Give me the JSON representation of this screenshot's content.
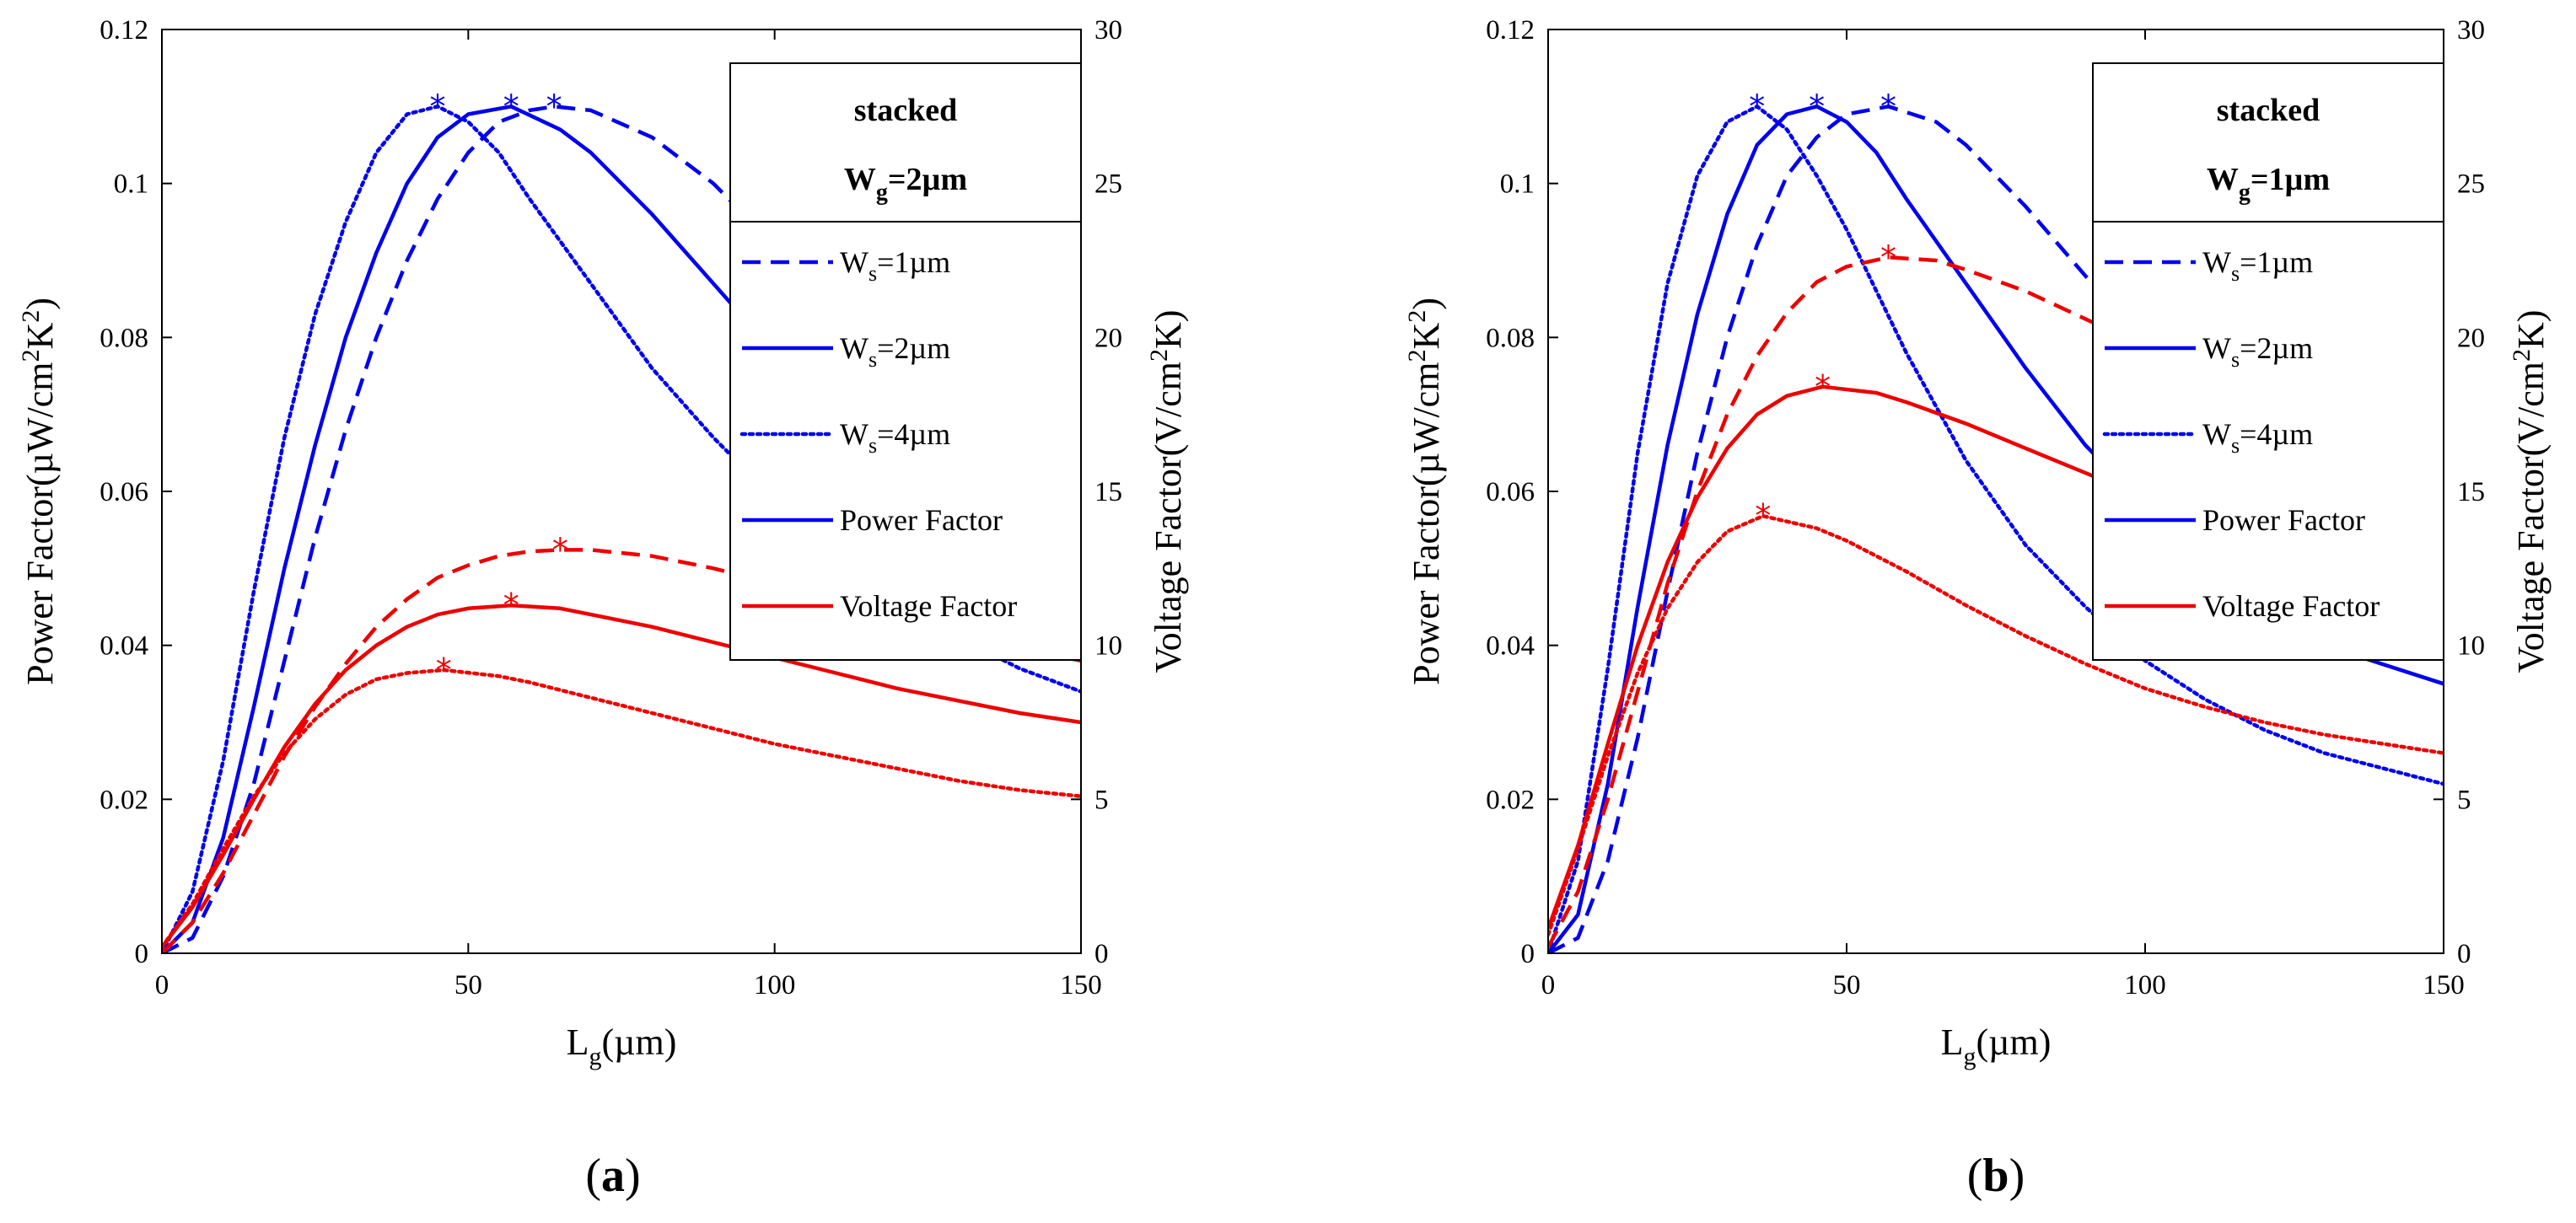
{
  "chart_data": [
    {
      "type": "line",
      "panel_label": "a",
      "xlabel": "L",
      "xlabel_sub": "g",
      "xlabel_unit": "(µm)",
      "ylabel_left": "Power Factor(µW/cm",
      "ylabel_left_sup": "2",
      "ylabel_left_tail": "K",
      "ylabel_left_sup2": "2",
      "ylabel_left_close": ")",
      "ylabel_right": "Voltage Factor(V/cm",
      "ylabel_right_sup": "2",
      "ylabel_right_tail": "K)",
      "xlim": [
        0,
        150
      ],
      "ylim_left": [
        0,
        0.12
      ],
      "ylim_right": [
        0,
        30
      ],
      "xticks": [
        "0",
        "50",
        "100",
        "150"
      ],
      "yticks_left": [
        "0",
        "0.02",
        "0.04",
        "0.06",
        "0.08",
        "0.1",
        "0.12"
      ],
      "yticks_right": [
        "0",
        "5",
        "10",
        "15",
        "20",
        "25",
        "30"
      ],
      "legend": {
        "title_line1": "stacked",
        "title_line2_main": "W",
        "title_line2_sub": "g",
        "title_line2_tail": "=2µm",
        "entries": [
          {
            "main": "W",
            "sub": "s",
            "tail": "=1µm",
            "style": "dashed",
            "color": "#0000ee"
          },
          {
            "main": "W",
            "sub": "s",
            "tail": "=2µm",
            "style": "solid",
            "color": "#0000ee"
          },
          {
            "main": "W",
            "sub": "s",
            "tail": "=4µm",
            "style": "dotted",
            "color": "#0000ee"
          },
          {
            "main": "Power Factor",
            "sub": "",
            "tail": "",
            "style": "solid",
            "color": "#0000ee"
          },
          {
            "main": "Voltage Factor",
            "sub": "",
            "tail": "",
            "style": "solid",
            "color": "#ee0000"
          }
        ]
      },
      "series": [
        {
          "name": "Power Factor, Ws=1µm",
          "axis": "left",
          "color": "#0000ee",
          "style": "dashed",
          "peak_marker": [
            64,
            0.11
          ],
          "x": [
            0,
            5,
            10,
            15,
            20,
            25,
            30,
            35,
            40,
            45,
            50,
            55,
            60,
            64,
            70,
            80,
            90,
            100,
            110,
            120,
            130,
            140,
            150
          ],
          "y": [
            0,
            0.002,
            0.01,
            0.022,
            0.038,
            0.054,
            0.068,
            0.08,
            0.09,
            0.098,
            0.104,
            0.108,
            0.1095,
            0.11,
            0.1095,
            0.106,
            0.1,
            0.092,
            0.084,
            0.076,
            0.069,
            0.062,
            0.0565
          ]
        },
        {
          "name": "Power Factor, Ws=2µm",
          "axis": "left",
          "color": "#0000ee",
          "style": "solid",
          "peak_marker": [
            57,
            0.11
          ],
          "x": [
            0,
            5,
            10,
            15,
            20,
            25,
            30,
            35,
            40,
            45,
            50,
            57,
            65,
            70,
            80,
            90,
            100,
            110,
            120,
            130,
            140,
            150
          ],
          "y": [
            0,
            0.004,
            0.015,
            0.032,
            0.05,
            0.066,
            0.08,
            0.091,
            0.1,
            0.106,
            0.109,
            0.11,
            0.107,
            0.104,
            0.096,
            0.087,
            0.078,
            0.07,
            0.063,
            0.057,
            0.052,
            0.047
          ]
        },
        {
          "name": "Power Factor, Ws=4µm",
          "axis": "left",
          "color": "#0000ee",
          "style": "dotted",
          "peak_marker": [
            45,
            0.11
          ],
          "x": [
            0,
            5,
            10,
            15,
            20,
            25,
            30,
            35,
            40,
            45,
            50,
            55,
            60,
            70,
            80,
            90,
            100,
            110,
            120,
            130,
            140,
            150
          ],
          "y": [
            0,
            0.008,
            0.025,
            0.047,
            0.067,
            0.083,
            0.095,
            0.104,
            0.109,
            0.11,
            0.108,
            0.104,
            0.098,
            0.087,
            0.076,
            0.067,
            0.059,
            0.052,
            0.046,
            0.041,
            0.037,
            0.034
          ]
        },
        {
          "name": "Voltage Factor, Ws=1µm",
          "axis": "right",
          "color": "#ee0000",
          "style": "dashed",
          "peak_marker": [
            65,
            13.1
          ],
          "x": [
            0,
            5,
            10,
            15,
            20,
            25,
            30,
            35,
            40,
            45,
            50,
            55,
            60,
            65,
            70,
            80,
            90,
            100,
            110,
            120,
            130,
            140,
            150
          ],
          "y": [
            0,
            1.0,
            2.6,
            4.5,
            6.4,
            8.0,
            9.4,
            10.6,
            11.5,
            12.2,
            12.6,
            12.9,
            13.05,
            13.1,
            13.1,
            12.9,
            12.5,
            12.0,
            11.4,
            10.9,
            10.4,
            9.9,
            9.5
          ]
        },
        {
          "name": "Voltage Factor, Ws=2µm",
          "axis": "right",
          "color": "#ee0000",
          "style": "solid",
          "peak_marker": [
            57,
            11.3
          ],
          "x": [
            0,
            5,
            10,
            15,
            20,
            25,
            30,
            35,
            40,
            45,
            50,
            57,
            65,
            70,
            80,
            90,
            100,
            110,
            120,
            130,
            140,
            150
          ],
          "y": [
            0.2,
            1.5,
            3.2,
            5.0,
            6.7,
            8.1,
            9.2,
            10.0,
            10.6,
            11.0,
            11.2,
            11.3,
            11.2,
            11.0,
            10.6,
            10.1,
            9.6,
            9.1,
            8.6,
            8.2,
            7.8,
            7.5
          ]
        },
        {
          "name": "Voltage Factor, Ws=4µm",
          "axis": "right",
          "color": "#ee0000",
          "style": "dotted",
          "peak_marker": [
            46,
            9.2
          ],
          "x": [
            0,
            5,
            10,
            15,
            20,
            25,
            30,
            35,
            40,
            46,
            55,
            60,
            70,
            80,
            90,
            100,
            110,
            120,
            130,
            140,
            150
          ],
          "y": [
            0.2,
            1.6,
            3.4,
            5.1,
            6.5,
            7.6,
            8.4,
            8.9,
            9.1,
            9.2,
            9.0,
            8.8,
            8.3,
            7.8,
            7.3,
            6.8,
            6.4,
            6.0,
            5.6,
            5.3,
            5.1
          ]
        }
      ]
    },
    {
      "type": "line",
      "panel_label": "b",
      "xlabel": "L",
      "xlabel_sub": "g",
      "xlabel_unit": "(µm)",
      "ylabel_left": "Power Factor(µW/cm",
      "ylabel_left_sup": "2",
      "ylabel_left_tail": "K",
      "ylabel_left_sup2": "2",
      "ylabel_left_close": ")",
      "ylabel_right": "Voltage Factor(V/cm",
      "ylabel_right_sup": "2",
      "ylabel_right_tail": "K)",
      "xlim": [
        0,
        150
      ],
      "ylim_left": [
        0,
        0.12
      ],
      "ylim_right": [
        0,
        30
      ],
      "xticks": [
        "0",
        "50",
        "100",
        "150"
      ],
      "yticks_left": [
        "0",
        "0.02",
        "0.04",
        "0.06",
        "0.08",
        "0.1",
        "0.12"
      ],
      "yticks_right": [
        "0",
        "5",
        "10",
        "15",
        "20",
        "25",
        "30"
      ],
      "legend": {
        "title_line1": "stacked",
        "title_line2_main": "W",
        "title_line2_sub": "g",
        "title_line2_tail": "=1µm",
        "entries": [
          {
            "main": "W",
            "sub": "s",
            "tail": "=1µm",
            "style": "dashed",
            "color": "#0000ee"
          },
          {
            "main": "W",
            "sub": "s",
            "tail": "=2µm",
            "style": "solid",
            "color": "#0000ee"
          },
          {
            "main": "W",
            "sub": "s",
            "tail": "=4µm",
            "style": "dotted",
            "color": "#0000ee"
          },
          {
            "main": "Power Factor",
            "sub": "",
            "tail": "",
            "style": "solid",
            "color": "#0000ee"
          },
          {
            "main": "Voltage Factor",
            "sub": "",
            "tail": "",
            "style": "solid",
            "color": "#ee0000"
          }
        ]
      },
      "series": [
        {
          "name": "Power Factor, Ws=1µm",
          "axis": "left",
          "color": "#0000ee",
          "style": "dashed",
          "peak_marker": [
            57,
            0.11
          ],
          "x": [
            0,
            5,
            10,
            15,
            20,
            25,
            30,
            35,
            40,
            45,
            50,
            57,
            65,
            70,
            80,
            90,
            100,
            110,
            120,
            130,
            140,
            150
          ],
          "y": [
            0,
            0.002,
            0.012,
            0.028,
            0.047,
            0.065,
            0.08,
            0.092,
            0.101,
            0.106,
            0.109,
            0.11,
            0.108,
            0.105,
            0.097,
            0.088,
            0.079,
            0.071,
            0.063,
            0.056,
            0.05,
            0.045
          ]
        },
        {
          "name": "Power Factor, Ws=2µm",
          "axis": "left",
          "color": "#0000ee",
          "style": "solid",
          "peak_marker": [
            45,
            0.11
          ],
          "x": [
            0,
            5,
            10,
            15,
            20,
            25,
            30,
            35,
            40,
            45,
            50,
            55,
            60,
            70,
            80,
            90,
            100,
            110,
            120,
            130,
            140,
            150
          ],
          "y": [
            0,
            0.005,
            0.022,
            0.045,
            0.066,
            0.083,
            0.096,
            0.105,
            0.109,
            0.11,
            0.108,
            0.104,
            0.098,
            0.087,
            0.076,
            0.066,
            0.058,
            0.051,
            0.045,
            0.04,
            0.0375,
            0.035
          ]
        },
        {
          "name": "Power Factor, Ws=4µm",
          "axis": "left",
          "color": "#0000ee",
          "style": "dotted",
          "peak_marker": [
            35,
            0.11
          ],
          "x": [
            0,
            5,
            10,
            15,
            20,
            25,
            30,
            35,
            40,
            45,
            50,
            55,
            60,
            70,
            80,
            90,
            100,
            110,
            120,
            130,
            140,
            150
          ],
          "y": [
            0,
            0.012,
            0.037,
            0.065,
            0.087,
            0.101,
            0.108,
            0.11,
            0.107,
            0.101,
            0.094,
            0.086,
            0.078,
            0.064,
            0.053,
            0.045,
            0.038,
            0.033,
            0.029,
            0.026,
            0.024,
            0.022
          ]
        },
        {
          "name": "Voltage Factor, Ws=1µm",
          "axis": "right",
          "color": "#ee0000",
          "style": "dashed",
          "peak_marker": [
            57,
            22.6
          ],
          "x": [
            0,
            5,
            10,
            15,
            20,
            25,
            30,
            35,
            40,
            45,
            50,
            57,
            65,
            70,
            80,
            90,
            100,
            110,
            120,
            130,
            140,
            150
          ],
          "y": [
            0.2,
            2.0,
            5.0,
            8.5,
            12.0,
            15.0,
            17.5,
            19.4,
            20.8,
            21.8,
            22.3,
            22.6,
            22.5,
            22.2,
            21.5,
            20.6,
            19.7,
            18.8,
            17.9,
            17.0,
            16.0,
            15.0
          ]
        },
        {
          "name": "Voltage Factor, Ws=2µm",
          "axis": "right",
          "color": "#ee0000",
          "style": "solid",
          "peak_marker": [
            46,
            18.4
          ],
          "x": [
            0,
            5,
            10,
            15,
            20,
            25,
            30,
            35,
            40,
            46,
            55,
            60,
            70,
            80,
            90,
            100,
            110,
            120,
            130,
            140,
            150
          ],
          "y": [
            0.8,
            3.5,
            6.8,
            10.0,
            12.7,
            14.8,
            16.4,
            17.5,
            18.1,
            18.4,
            18.2,
            17.9,
            17.2,
            16.4,
            15.6,
            14.8,
            14.0,
            13.2,
            12.4,
            11.4,
            10.4
          ]
        },
        {
          "name": "Voltage Factor, Ws=4µm",
          "axis": "right",
          "color": "#ee0000",
          "style": "dotted",
          "peak_marker": [
            36,
            14.2
          ],
          "x": [
            0,
            5,
            10,
            15,
            20,
            25,
            30,
            36,
            45,
            50,
            60,
            70,
            80,
            90,
            100,
            110,
            120,
            130,
            140,
            150
          ],
          "y": [
            0.6,
            3.4,
            6.4,
            9.1,
            11.2,
            12.7,
            13.7,
            14.2,
            13.8,
            13.4,
            12.4,
            11.3,
            10.3,
            9.4,
            8.6,
            8.0,
            7.5,
            7.1,
            6.8,
            6.5
          ]
        }
      ]
    }
  ]
}
